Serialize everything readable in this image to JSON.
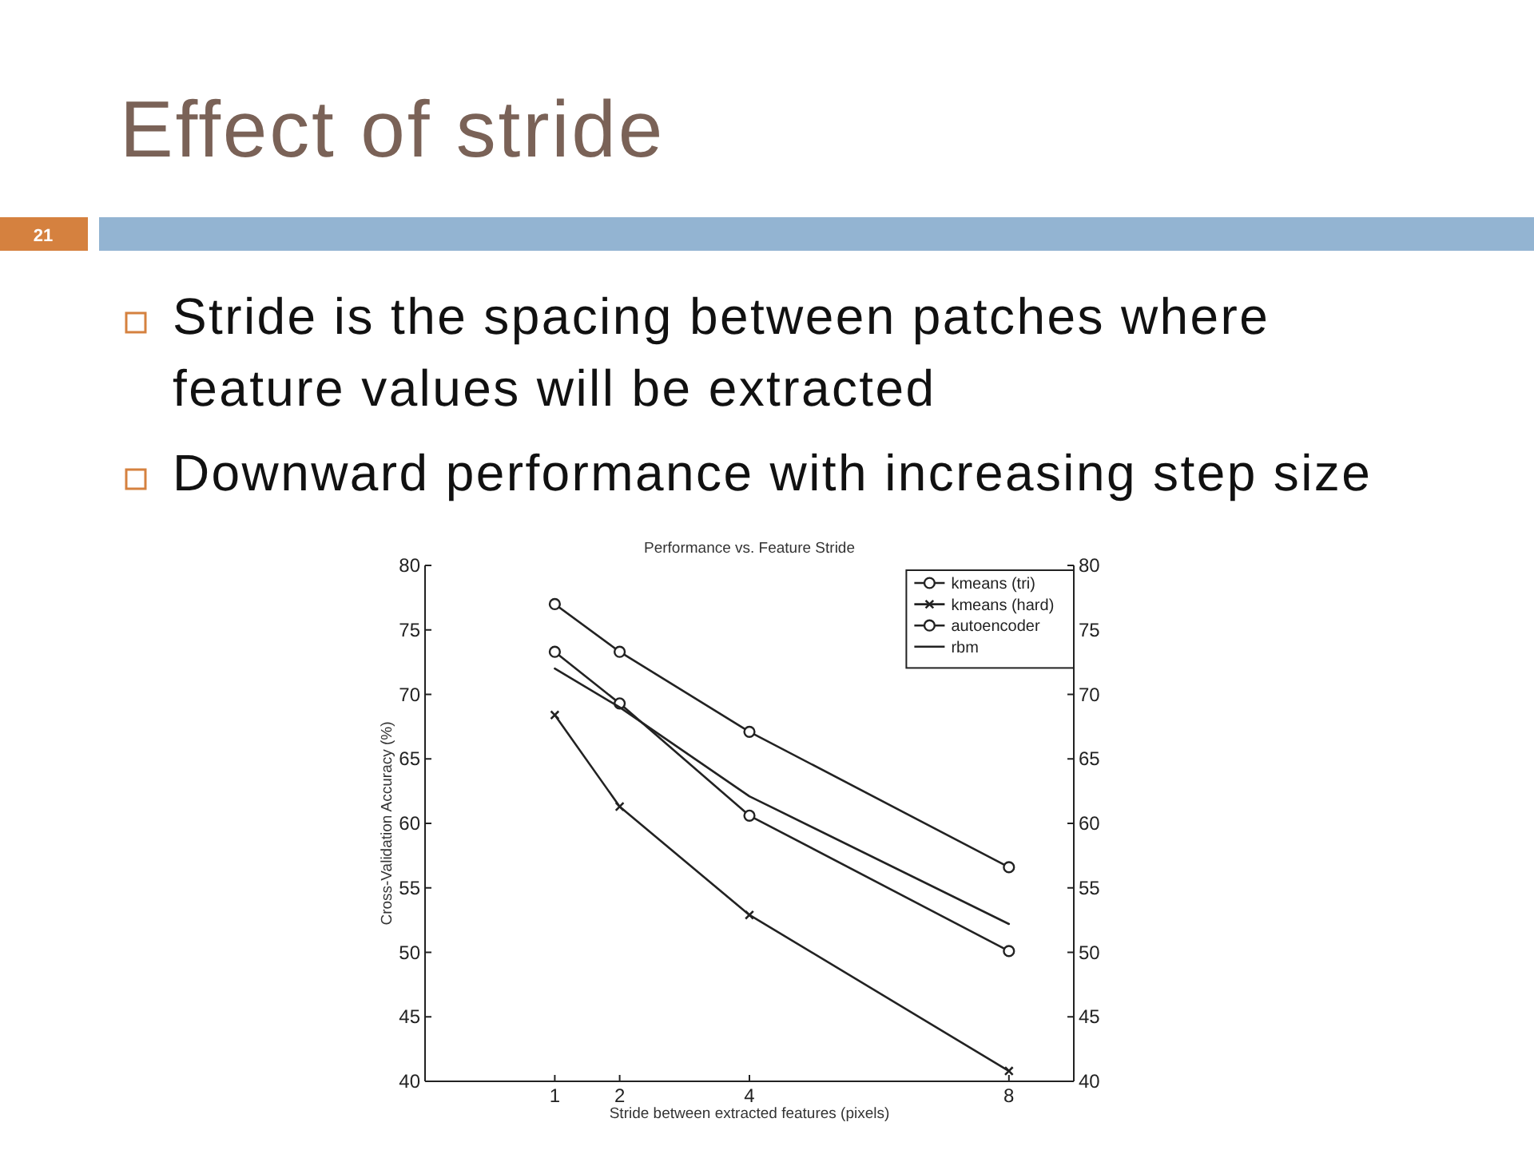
{
  "chart_data": {
    "type": "line",
    "title": "Effect of stride",
    "subtitle": "Performance vs. Feature Stride",
    "xlabel": "Stride between extracted features (pixels)",
    "ylabel": "Cross-Validation Accuracy (%)",
    "annotations": [
      "21",
      "Stride is the spacing between patches where feature values will be extracted",
      "Downward performance with increasing step size"
    ],
    "x": [
      1,
      2,
      4,
      8
    ],
    "series": [
      {
        "name": "kmeans (tri)",
        "color": "#222222",
        "marker": "circle",
        "values": [
          77.0,
          73.3,
          67.1,
          56.6
        ]
      },
      {
        "name": "kmeans (hard)",
        "color": "#222222",
        "marker": "cross",
        "values": [
          68.4,
          61.3,
          52.9,
          40.8
        ]
      },
      {
        "name": "autoencoder",
        "color": "#222222",
        "marker": "circle",
        "values": [
          73.3,
          69.3,
          60.6,
          50.1
        ]
      },
      {
        "name": "rbm",
        "color": "#222222",
        "marker": "none",
        "values": [
          72.0,
          69.0,
          62.1,
          52.2
        ]
      }
    ],
    "xlim": [
      -1,
      9
    ],
    "xticks": [
      1,
      2,
      4,
      8
    ],
    "ylim": [
      40,
      80
    ],
    "yticks": [
      40,
      45,
      50,
      55,
      60,
      65,
      70,
      75,
      80
    ],
    "y2lim": [
      40,
      80
    ],
    "y2ticks": [
      40,
      45,
      50,
      55,
      60,
      65,
      70,
      75,
      80
    ],
    "legend": "top right",
    "line_style": "solid"
  }
}
